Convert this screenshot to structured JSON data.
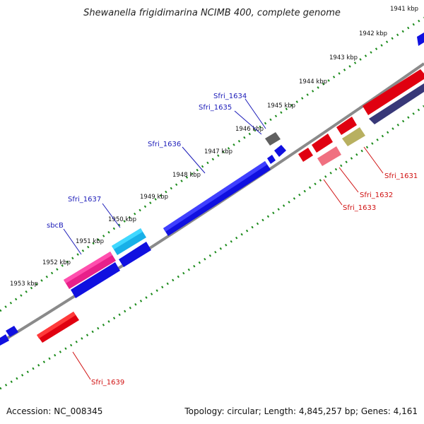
{
  "title": "Shewanella frigidimarina NCIMB 400, complete genome",
  "footer": {
    "accession": "Accession: NC_008345",
    "summary": "Topology: circular; Length: 4,845,257 bp; Genes: 4,161"
  },
  "colors": {
    "backbone": "#808080",
    "tick": "#1a8a1a",
    "label_blue": "#1a1ab8",
    "label_red": "#d01010"
  },
  "kbp_labels": [
    "1941 kbp",
    "1942 kbp",
    "1943 kbp",
    "1944 kbp",
    "1945 kbp",
    "1946 kbp",
    "1947 kbp",
    "1948 kbp",
    "1949 kbp",
    "1950 kbp",
    "1951 kbp",
    "1952 kbp",
    "1953 kbp"
  ],
  "gene_labels_top": [
    "Sfri_1634",
    "Sfri_1635",
    "Sfri_1636",
    "Sfri_1637",
    "sbcB"
  ],
  "gene_labels_bottom": [
    "Sfri_1631",
    "Sfri_1632",
    "Sfri_1633",
    "Sfri_1639"
  ],
  "feature_colors": [
    "blue",
    "gray",
    "cyan",
    "magenta",
    "red",
    "pink",
    "khaki",
    "navy"
  ]
}
